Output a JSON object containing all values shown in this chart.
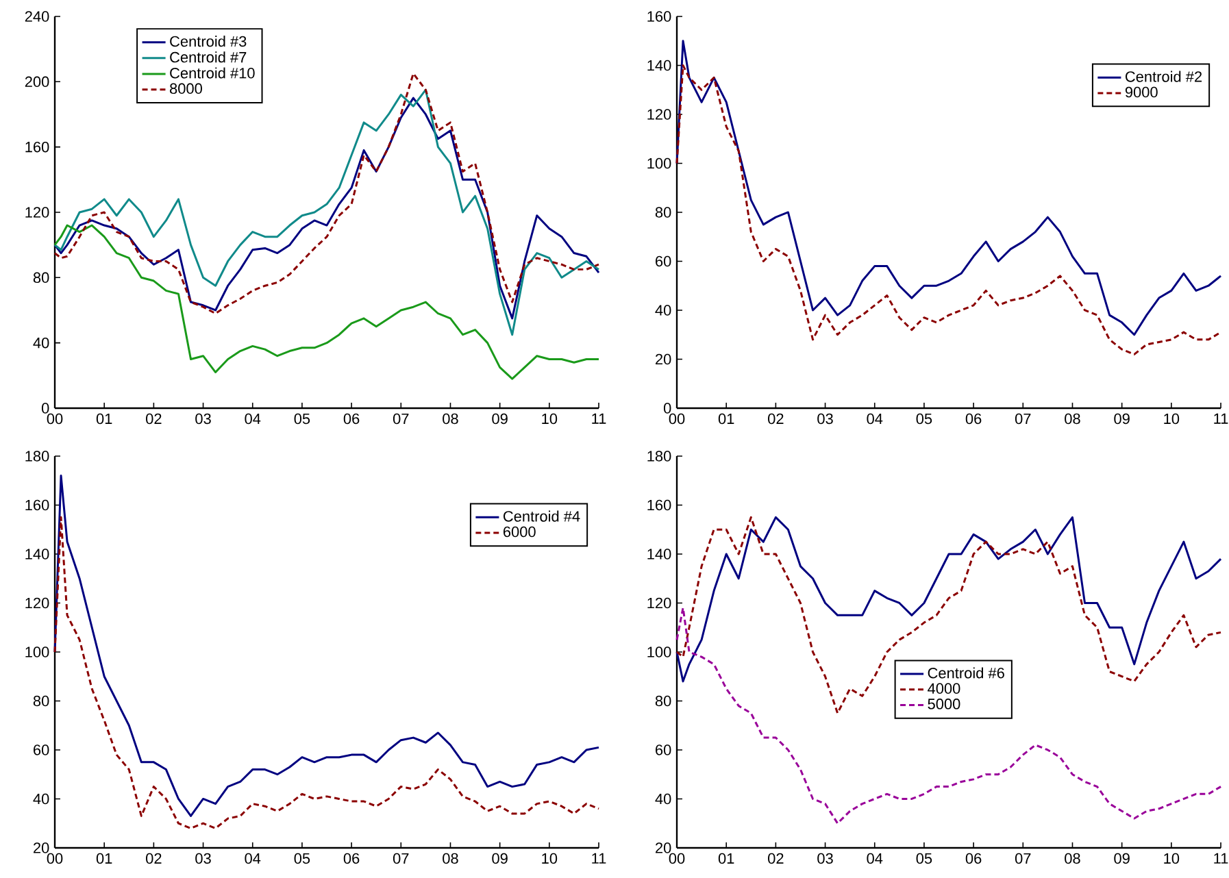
{
  "chart_data": [
    {
      "type": "line",
      "x": [
        2000,
        2000.125,
        2000.25,
        2000.5,
        2000.75,
        2001,
        2001.25,
        2001.5,
        2001.75,
        2002,
        2002.25,
        2002.5,
        2002.75,
        2003,
        2003.25,
        2003.5,
        2003.75,
        2004,
        2004.25,
        2004.5,
        2004.75,
        2005,
        2005.25,
        2005.5,
        2005.75,
        2006,
        2006.25,
        2006.5,
        2006.75,
        2007,
        2007.25,
        2007.5,
        2007.75,
        2008,
        2008.25,
        2008.5,
        2008.75,
        2009,
        2009.25,
        2009.5,
        2009.75,
        2010,
        2010.25,
        2010.5,
        2010.75,
        2011
      ],
      "xlim": [
        2000,
        2011
      ],
      "ylim": [
        0,
        240
      ],
      "yticks": [
        0,
        40,
        80,
        120,
        160,
        200,
        240
      ],
      "xticks": [
        {
          "value": 2000,
          "label": "00"
        },
        {
          "value": 2001,
          "label": "01"
        },
        {
          "value": 2002,
          "label": "02"
        },
        {
          "value": 2003,
          "label": "03"
        },
        {
          "value": 2004,
          "label": "04"
        },
        {
          "value": 2005,
          "label": "05"
        },
        {
          "value": 2006,
          "label": "06"
        },
        {
          "value": 2007,
          "label": "07"
        },
        {
          "value": 2008,
          "label": "08"
        },
        {
          "value": 2009,
          "label": "09"
        },
        {
          "value": 2010,
          "label": "10"
        },
        {
          "value": 2011,
          "label": "11"
        }
      ],
      "legend": "top left",
      "series": [
        {
          "name": "Centroid  #3",
          "color": "#000080",
          "values": [
            100,
            95,
            100,
            112,
            115,
            112,
            110,
            105,
            95,
            88,
            92,
            97,
            65,
            63,
            60,
            75,
            85,
            97,
            98,
            95,
            100,
            110,
            115,
            112,
            125,
            135,
            158,
            145,
            160,
            178,
            190,
            180,
            165,
            170,
            140,
            140,
            120,
            75,
            55,
            90,
            118,
            110,
            105,
            95,
            93,
            83
          ]
        },
        {
          "name": "Centroid  #7",
          "color": "#108a8a",
          "values": [
            100,
            97,
            105,
            120,
            122,
            128,
            118,
            128,
            120,
            105,
            115,
            128,
            100,
            80,
            75,
            90,
            100,
            108,
            105,
            105,
            112,
            118,
            120,
            125,
            135,
            155,
            175,
            170,
            180,
            192,
            185,
            195,
            160,
            150,
            120,
            130,
            110,
            70,
            45,
            85,
            95,
            92,
            80,
            85,
            90,
            85
          ]
        },
        {
          "name": "Centroid  #10",
          "color": "#1a9a1a",
          "values": [
            100,
            105,
            112,
            108,
            112,
            105,
            95,
            92,
            80,
            78,
            72,
            70,
            30,
            32,
            22,
            30,
            35,
            38,
            36,
            32,
            35,
            37,
            37,
            40,
            45,
            52,
            55,
            50,
            55,
            60,
            62,
            65,
            58,
            55,
            45,
            48,
            40,
            25,
            18,
            25,
            32,
            30,
            30,
            28,
            30,
            30
          ]
        },
        {
          "name": "8000",
          "color": "#8b0000",
          "line_style": "dashed",
          "values": [
            95,
            92,
            93,
            105,
            118,
            120,
            108,
            105,
            92,
            90,
            90,
            85,
            65,
            62,
            58,
            63,
            67,
            72,
            75,
            77,
            82,
            90,
            98,
            105,
            118,
            125,
            155,
            145,
            160,
            180,
            205,
            195,
            170,
            175,
            145,
            150,
            120,
            85,
            65,
            88,
            92,
            90,
            88,
            85,
            85,
            88
          ]
        }
      ]
    },
    {
      "type": "line",
      "x": [
        2000,
        2000.125,
        2000.25,
        2000.5,
        2000.75,
        2001,
        2001.25,
        2001.5,
        2001.75,
        2002,
        2002.25,
        2002.5,
        2002.75,
        2003,
        2003.25,
        2003.5,
        2003.75,
        2004,
        2004.25,
        2004.5,
        2004.75,
        2005,
        2005.25,
        2005.5,
        2005.75,
        2006,
        2006.25,
        2006.5,
        2006.75,
        2007,
        2007.25,
        2007.5,
        2007.75,
        2008,
        2008.25,
        2008.5,
        2008.75,
        2009,
        2009.25,
        2009.5,
        2009.75,
        2010,
        2010.25,
        2010.5,
        2010.75,
        2011
      ],
      "xlim": [
        2000,
        2011
      ],
      "ylim": [
        0,
        160
      ],
      "yticks": [
        0,
        20,
        40,
        60,
        80,
        100,
        120,
        140,
        160
      ],
      "xticks": [
        {
          "value": 2000,
          "label": "00"
        },
        {
          "value": 2001,
          "label": "01"
        },
        {
          "value": 2002,
          "label": "02"
        },
        {
          "value": 2003,
          "label": "03"
        },
        {
          "value": 2004,
          "label": "04"
        },
        {
          "value": 2005,
          "label": "05"
        },
        {
          "value": 2006,
          "label": "06"
        },
        {
          "value": 2007,
          "label": "07"
        },
        {
          "value": 2008,
          "label": "08"
        },
        {
          "value": 2009,
          "label": "09"
        },
        {
          "value": 2010,
          "label": "10"
        },
        {
          "value": 2011,
          "label": "11"
        }
      ],
      "legend": "top right",
      "series": [
        {
          "name": "Centroid  #2",
          "color": "#000080",
          "values": [
            100,
            150,
            135,
            125,
            135,
            125,
            105,
            85,
            75,
            78,
            80,
            60,
            40,
            45,
            38,
            42,
            52,
            58,
            58,
            50,
            45,
            50,
            50,
            52,
            55,
            62,
            68,
            60,
            65,
            68,
            72,
            78,
            72,
            62,
            55,
            55,
            38,
            35,
            30,
            38,
            45,
            48,
            55,
            48,
            50,
            54
          ]
        },
        {
          "name": "9000",
          "color": "#8b0000",
          "line_style": "dashed",
          "values": [
            100,
            140,
            135,
            130,
            135,
            115,
            105,
            72,
            60,
            65,
            62,
            48,
            28,
            38,
            30,
            35,
            38,
            42,
            46,
            37,
            32,
            37,
            35,
            38,
            40,
            42,
            48,
            42,
            44,
            45,
            47,
            50,
            54,
            48,
            40,
            38,
            28,
            24,
            22,
            26,
            27,
            28,
            31,
            28,
            28,
            31
          ]
        }
      ]
    },
    {
      "type": "line",
      "x": [
        2000,
        2000.125,
        2000.25,
        2000.5,
        2000.75,
        2001,
        2001.25,
        2001.5,
        2001.75,
        2002,
        2002.25,
        2002.5,
        2002.75,
        2003,
        2003.25,
        2003.5,
        2003.75,
        2004,
        2004.25,
        2004.5,
        2004.75,
        2005,
        2005.25,
        2005.5,
        2005.75,
        2006,
        2006.25,
        2006.5,
        2006.75,
        2007,
        2007.25,
        2007.5,
        2007.75,
        2008,
        2008.25,
        2008.5,
        2008.75,
        2009,
        2009.25,
        2009.5,
        2009.75,
        2010,
        2010.25,
        2010.5,
        2010.75,
        2011
      ],
      "xlim": [
        2000,
        2011
      ],
      "ylim": [
        20,
        180
      ],
      "yticks": [
        20,
        40,
        60,
        80,
        100,
        120,
        140,
        160,
        180
      ],
      "xticks": [
        {
          "value": 2000,
          "label": "00"
        },
        {
          "value": 2001,
          "label": "01"
        },
        {
          "value": 2002,
          "label": "02"
        },
        {
          "value": 2003,
          "label": "03"
        },
        {
          "value": 2004,
          "label": "04"
        },
        {
          "value": 2005,
          "label": "05"
        },
        {
          "value": 2006,
          "label": "06"
        },
        {
          "value": 2007,
          "label": "07"
        },
        {
          "value": 2008,
          "label": "08"
        },
        {
          "value": 2009,
          "label": "09"
        },
        {
          "value": 2010,
          "label": "10"
        },
        {
          "value": 2011,
          "label": "11"
        }
      ],
      "legend": "top right",
      "series": [
        {
          "name": "Centroid  #4",
          "color": "#000080",
          "values": [
            100,
            172,
            145,
            130,
            110,
            90,
            80,
            70,
            55,
            55,
            52,
            40,
            33,
            40,
            38,
            45,
            47,
            52,
            52,
            50,
            53,
            57,
            55,
            57,
            57,
            58,
            58,
            55,
            60,
            64,
            65,
            63,
            67,
            62,
            55,
            54,
            45,
            47,
            45,
            46,
            54,
            55,
            57,
            55,
            60,
            61
          ]
        },
        {
          "name": "6000",
          "color": "#8b0000",
          "line_style": "dashed",
          "values": [
            100,
            155,
            115,
            105,
            85,
            72,
            58,
            52,
            33,
            45,
            40,
            30,
            28,
            30,
            28,
            32,
            33,
            38,
            37,
            35,
            38,
            42,
            40,
            41,
            40,
            39,
            39,
            37,
            40,
            45,
            44,
            46,
            52,
            48,
            41,
            39,
            35,
            37,
            34,
            34,
            38,
            39,
            37,
            34,
            38,
            36
          ]
        }
      ]
    },
    {
      "type": "line",
      "x": [
        2000,
        2000.125,
        2000.25,
        2000.5,
        2000.75,
        2001,
        2001.25,
        2001.5,
        2001.75,
        2002,
        2002.25,
        2002.5,
        2002.75,
        2003,
        2003.25,
        2003.5,
        2003.75,
        2004,
        2004.25,
        2004.5,
        2004.75,
        2005,
        2005.25,
        2005.5,
        2005.75,
        2006,
        2006.25,
        2006.5,
        2006.75,
        2007,
        2007.25,
        2007.5,
        2007.75,
        2008,
        2008.25,
        2008.5,
        2008.75,
        2009,
        2009.25,
        2009.5,
        2009.75,
        2010,
        2010.25,
        2010.5,
        2010.75,
        2011
      ],
      "xlim": [
        2000,
        2011
      ],
      "ylim": [
        20,
        180
      ],
      "yticks": [
        20,
        40,
        60,
        80,
        100,
        120,
        140,
        160,
        180
      ],
      "xticks": [
        {
          "value": 2000,
          "label": "00"
        },
        {
          "value": 2001,
          "label": "01"
        },
        {
          "value": 2002,
          "label": "02"
        },
        {
          "value": 2003,
          "label": "03"
        },
        {
          "value": 2004,
          "label": "04"
        },
        {
          "value": 2005,
          "label": "05"
        },
        {
          "value": 2006,
          "label": "06"
        },
        {
          "value": 2007,
          "label": "07"
        },
        {
          "value": 2008,
          "label": "08"
        },
        {
          "value": 2009,
          "label": "09"
        },
        {
          "value": 2010,
          "label": "10"
        },
        {
          "value": 2011,
          "label": "11"
        }
      ],
      "legend": "center",
      "series": [
        {
          "name": "Centroid  #6",
          "color": "#000080",
          "values": [
            100,
            88,
            95,
            105,
            125,
            140,
            130,
            150,
            145,
            155,
            150,
            135,
            130,
            120,
            115,
            115,
            115,
            125,
            122,
            120,
            115,
            120,
            130,
            140,
            140,
            148,
            145,
            138,
            142,
            145,
            150,
            140,
            148,
            155,
            120,
            120,
            110,
            110,
            95,
            112,
            125,
            135,
            145,
            130,
            133,
            138
          ]
        },
        {
          "name": "4000",
          "color": "#8b0000",
          "line_style": "dashed",
          "values": [
            100,
            98,
            110,
            135,
            150,
            150,
            140,
            155,
            140,
            140,
            130,
            120,
            100,
            90,
            75,
            85,
            82,
            90,
            100,
            105,
            108,
            112,
            115,
            122,
            125,
            140,
            145,
            140,
            140,
            142,
            140,
            145,
            132,
            135,
            115,
            110,
            92,
            90,
            88,
            95,
            100,
            108,
            115,
            102,
            107,
            108
          ]
        },
        {
          "name": "5000",
          "color": "#990099",
          "line_style": "dashed",
          "values": [
            105,
            118,
            100,
            98,
            95,
            85,
            78,
            75,
            65,
            65,
            60,
            52,
            40,
            38,
            30,
            35,
            38,
            40,
            42,
            40,
            40,
            42,
            45,
            45,
            47,
            48,
            50,
            50,
            53,
            58,
            62,
            60,
            57,
            50,
            47,
            45,
            38,
            35,
            32,
            35,
            36,
            38,
            40,
            42,
            42,
            45
          ]
        }
      ]
    }
  ]
}
